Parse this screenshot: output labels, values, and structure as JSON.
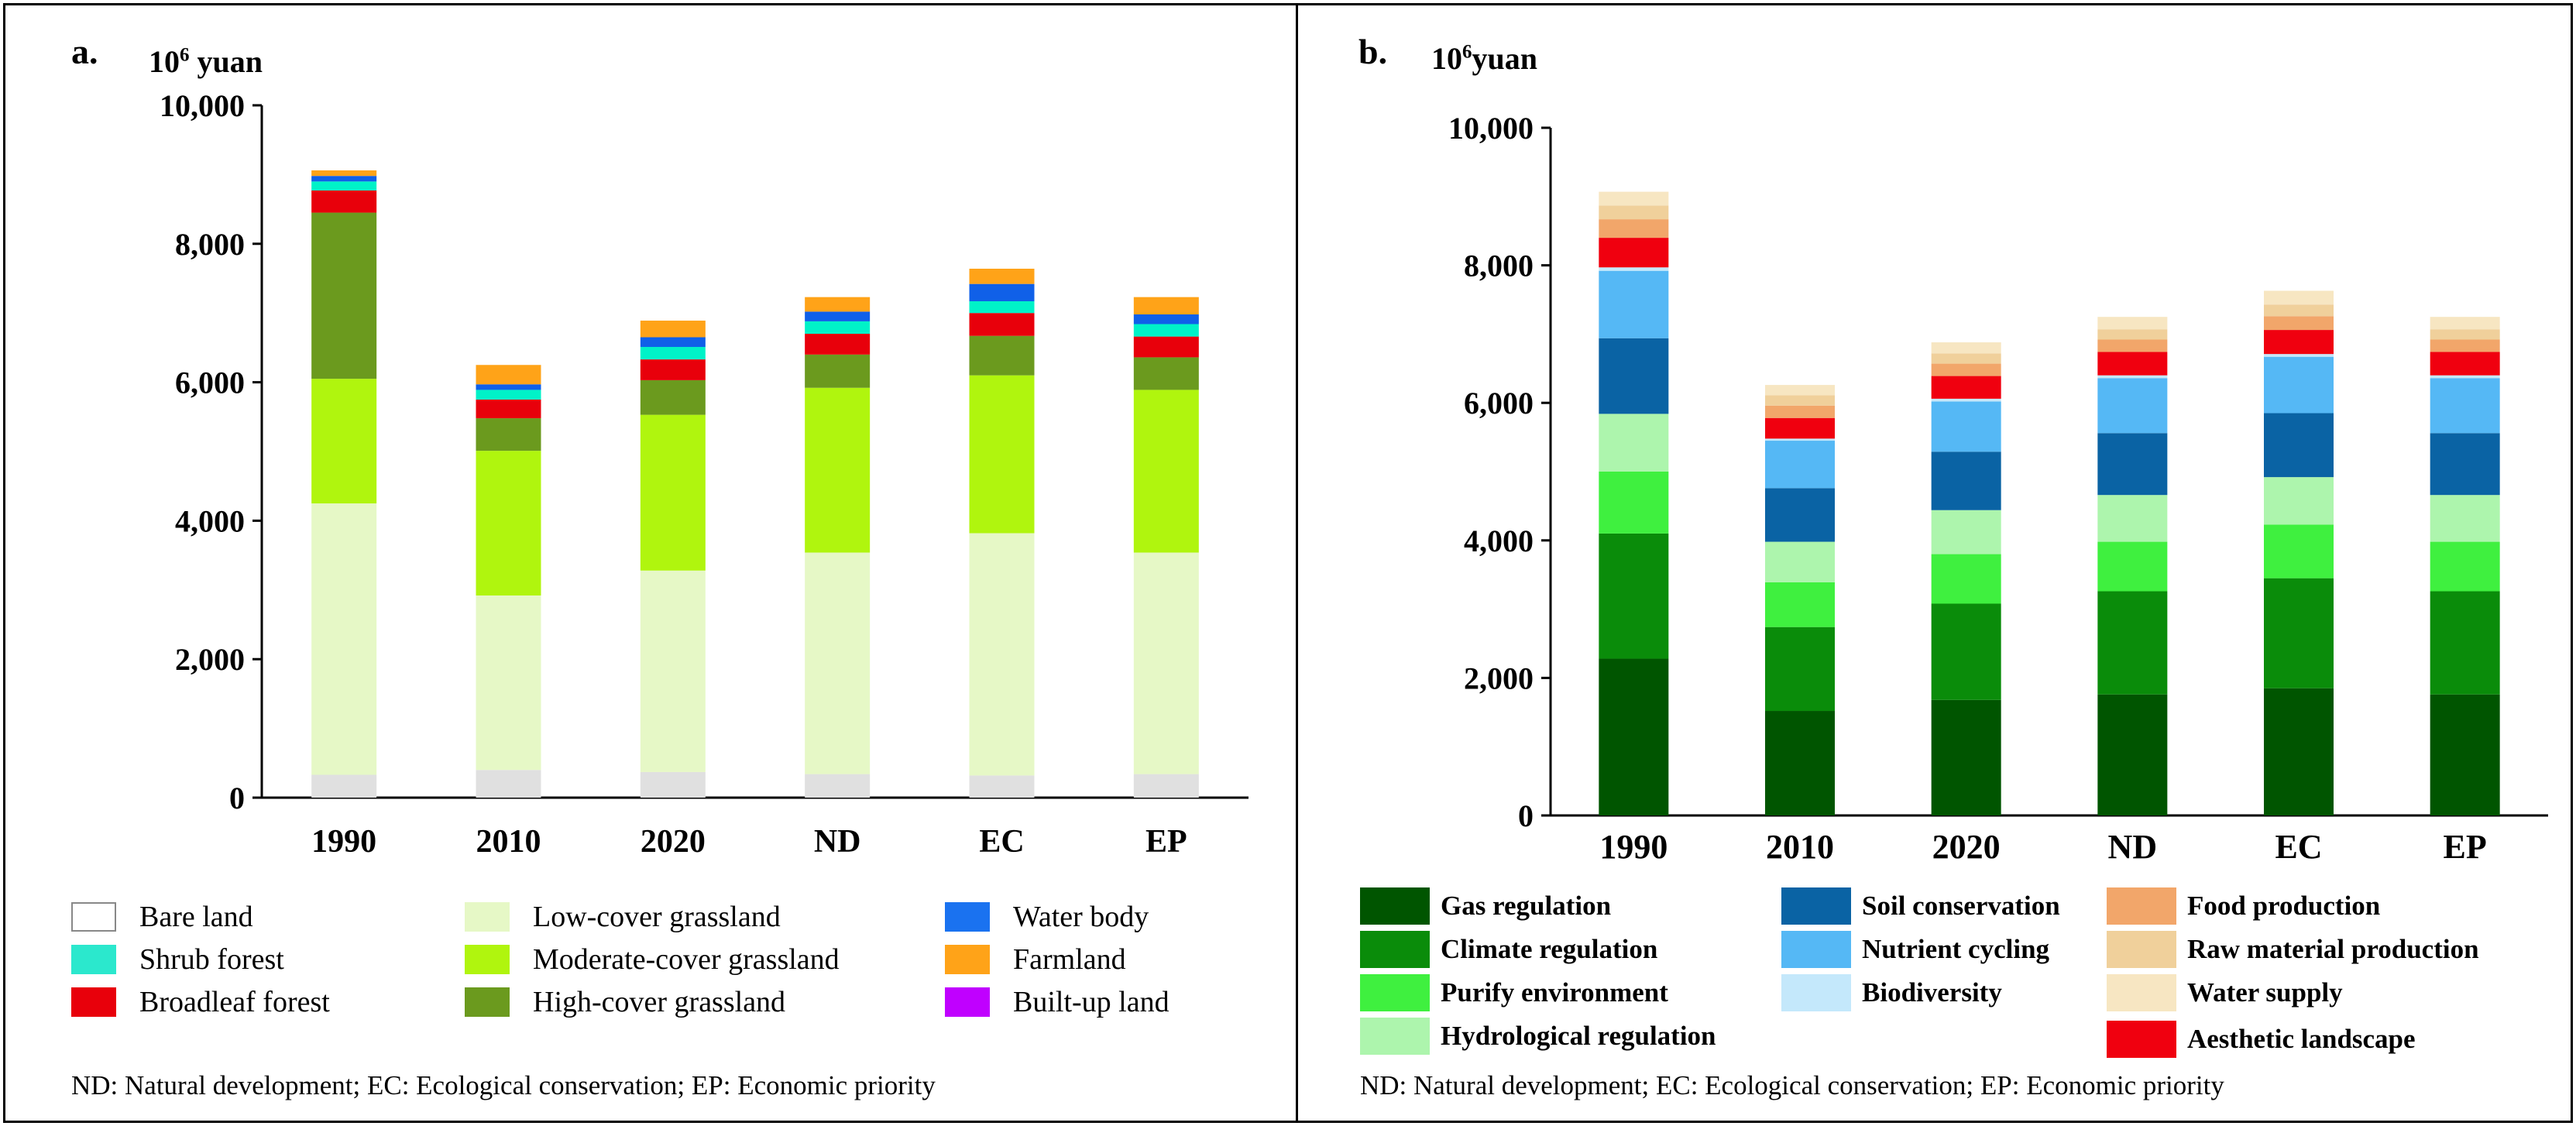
{
  "chart_data": [
    {
      "type": "bar",
      "stacked": true,
      "panel_label": "a.",
      "unit_base": "10",
      "unit_exp": "6",
      "unit_text": " yuan",
      "categories": [
        "1990",
        "2010",
        "2020",
        "ND",
        "EC",
        "EP"
      ],
      "ylim": [
        0,
        10000
      ],
      "yticks": [
        0,
        2000,
        4000,
        6000,
        8000,
        10000
      ],
      "ytick_labels": [
        "0",
        "2,000",
        "4,000",
        "6,000",
        "8,000",
        "10,000"
      ],
      "series": [
        {
          "name": "Bare land",
          "color": "#e0e0e0",
          "values": [
            330,
            400,
            370,
            340,
            320,
            340
          ]
        },
        {
          "name": "Low-cover grassland",
          "color": "#e6f8c6",
          "values": [
            3920,
            2520,
            2910,
            3200,
            3500,
            3200
          ]
        },
        {
          "name": "Moderate-cover grassland",
          "color": "#b0f50e",
          "values": [
            1800,
            2090,
            2250,
            2380,
            2280,
            2350
          ]
        },
        {
          "name": "High-cover grassland",
          "color": "#6b9a1e",
          "values": [
            2400,
            470,
            500,
            480,
            570,
            470
          ]
        },
        {
          "name": "Broadleaf forest",
          "color": "#e8000b",
          "values": [
            320,
            270,
            300,
            300,
            330,
            300
          ]
        },
        {
          "name": "Shrub forest",
          "color": "#00f2c8",
          "values": [
            130,
            140,
            180,
            180,
            170,
            180
          ]
        },
        {
          "name": "Water body",
          "color": "#1060e8",
          "values": [
            80,
            80,
            140,
            140,
            250,
            140
          ]
        },
        {
          "name": "Farmland",
          "color": "#ffa318",
          "values": [
            80,
            280,
            240,
            210,
            220,
            250
          ]
        },
        {
          "name": "Built-up land",
          "color": "#c000ff",
          "values": [
            0,
            0,
            0,
            0,
            0,
            0
          ]
        }
      ],
      "legend": [
        {
          "label": "Bare land",
          "color": "#ffffff"
        },
        {
          "label": "Shrub forest",
          "color": "#2be8cd"
        },
        {
          "label": "Broadleaf forest",
          "color": "#e8000b"
        },
        {
          "label": "Low-cover grassland",
          "color": "#e6f8c6"
        },
        {
          "label": "Moderate-cover grassland",
          "color": "#b0f50e"
        },
        {
          "label": "High-cover grassland",
          "color": "#6b9a1e"
        },
        {
          "label": "Water body",
          "color": "#1a72f0"
        },
        {
          "label": "Farmland",
          "color": "#ffa318"
        },
        {
          "label": "Built-up land",
          "color": "#c000ff"
        }
      ],
      "footnote": "ND: Natural development;  EC: Ecological conservation;  EP: Economic priority"
    },
    {
      "type": "bar",
      "stacked": true,
      "panel_label": "b.",
      "unit_base": "10",
      "unit_exp": "6",
      "unit_text": "yuan",
      "categories": [
        "1990",
        "2010",
        "2020",
        "ND",
        "EC",
        "EP"
      ],
      "ylim": [
        0,
        10000
      ],
      "yticks": [
        0,
        2000,
        4000,
        6000,
        8000,
        10000
      ],
      "ytick_labels": [
        "0",
        "2,000",
        "4,000",
        "6,000",
        "8,000",
        "10,000"
      ],
      "series": [
        {
          "name": "Gas regulation",
          "color": "#005500",
          "values": [
            2280,
            1520,
            1680,
            1760,
            1850,
            1760
          ]
        },
        {
          "name": "Climate regulation",
          "color": "#0a8c0a",
          "values": [
            1820,
            1220,
            1400,
            1500,
            1600,
            1500
          ]
        },
        {
          "name": "Purify environment",
          "color": "#3ff03f",
          "values": [
            900,
            650,
            720,
            720,
            780,
            720
          ]
        },
        {
          "name": "Hydrological regulation",
          "color": "#adf5ad",
          "values": [
            840,
            590,
            640,
            680,
            690,
            680
          ]
        },
        {
          "name": "Soil conservation",
          "color": "#0a63a4",
          "values": [
            1100,
            780,
            850,
            900,
            930,
            900
          ]
        },
        {
          "name": "Nutrient cycling",
          "color": "#55b8f5",
          "values": [
            980,
            690,
            730,
            800,
            820,
            800
          ]
        },
        {
          "name": "Biodiversity",
          "color": "#c4e8fb",
          "values": [
            50,
            30,
            40,
            40,
            40,
            40
          ]
        },
        {
          "name": "Aesthetic landscape",
          "color": "#f0000f",
          "values": [
            430,
            300,
            330,
            340,
            350,
            340
          ]
        },
        {
          "name": "Food production",
          "color": "#f2a66a",
          "values": [
            270,
            180,
            180,
            180,
            200,
            180
          ]
        },
        {
          "name": "Raw material production",
          "color": "#f0d09b",
          "values": [
            200,
            150,
            150,
            150,
            170,
            150
          ]
        },
        {
          "name": "Water supply",
          "color": "#f7e6c2",
          "values": [
            200,
            150,
            160,
            180,
            200,
            180
          ]
        }
      ],
      "legend": [
        {
          "label": "Gas regulation",
          "color": "#005500"
        },
        {
          "label": "Climate regulation",
          "color": "#0a8c0a"
        },
        {
          "label": "Purify environment",
          "color": "#3ff03f"
        },
        {
          "label": "Hydrological regulation",
          "color": "#adf5ad"
        },
        {
          "label": "Soil conservation",
          "color": "#0a63a4"
        },
        {
          "label": "Nutrient cycling",
          "color": "#55b8f5"
        },
        {
          "label": "Biodiversity",
          "color": "#c4e8fb"
        },
        {
          "label": "Food production",
          "color": "#f2a66a"
        },
        {
          "label": "Raw material production",
          "color": "#f0d09b"
        },
        {
          "label": "Water supply",
          "color": "#f7e6c2"
        },
        {
          "label": "Aesthetic landscape",
          "color": "#f0000f"
        }
      ],
      "footnote": "ND: Natural development;  EC: Ecological conservation;  EP: Economic priority"
    }
  ]
}
